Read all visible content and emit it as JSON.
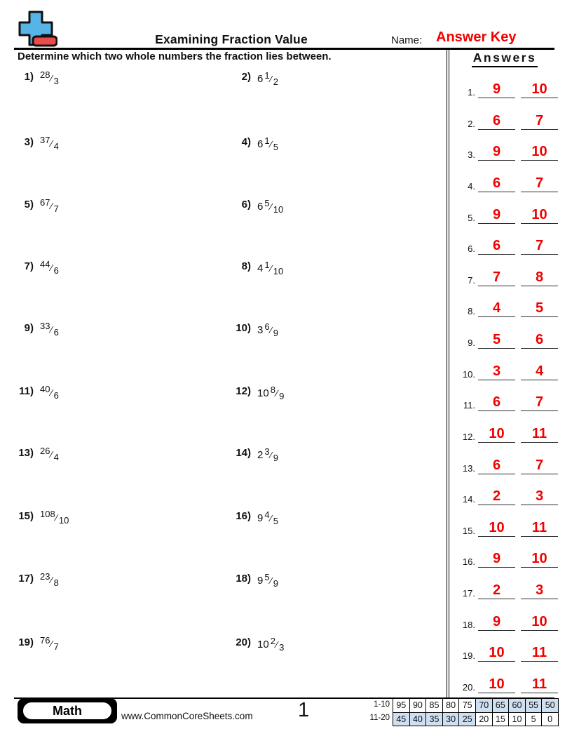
{
  "header": {
    "title": "Examining Fraction Value",
    "name_label": "Name:",
    "name_value": "Answer Key"
  },
  "instruction": "Determine which two whole numbers the fraction lies between.",
  "answers_panel": {
    "title": "Answers",
    "rows": [
      {
        "n": "1.",
        "low": "9",
        "high": "10"
      },
      {
        "n": "2.",
        "low": "6",
        "high": "7"
      },
      {
        "n": "3.",
        "low": "9",
        "high": "10"
      },
      {
        "n": "4.",
        "low": "6",
        "high": "7"
      },
      {
        "n": "5.",
        "low": "9",
        "high": "10"
      },
      {
        "n": "6.",
        "low": "6",
        "high": "7"
      },
      {
        "n": "7.",
        "low": "7",
        "high": "8"
      },
      {
        "n": "8.",
        "low": "4",
        "high": "5"
      },
      {
        "n": "9.",
        "low": "5",
        "high": "6"
      },
      {
        "n": "10.",
        "low": "3",
        "high": "4"
      },
      {
        "n": "11.",
        "low": "6",
        "high": "7"
      },
      {
        "n": "12.",
        "low": "10",
        "high": "11"
      },
      {
        "n": "13.",
        "low": "6",
        "high": "7"
      },
      {
        "n": "14.",
        "low": "2",
        "high": "3"
      },
      {
        "n": "15.",
        "low": "10",
        "high": "11"
      },
      {
        "n": "16.",
        "low": "9",
        "high": "10"
      },
      {
        "n": "17.",
        "low": "2",
        "high": "3"
      },
      {
        "n": "18.",
        "low": "9",
        "high": "10"
      },
      {
        "n": "19.",
        "low": "10",
        "high": "11"
      },
      {
        "n": "20.",
        "low": "10",
        "high": "11"
      }
    ]
  },
  "problems": [
    {
      "label": "1)",
      "whole": "",
      "num": "28",
      "den": "3"
    },
    {
      "label": "2)",
      "whole": "6",
      "num": "1",
      "den": "2"
    },
    {
      "label": "3)",
      "whole": "",
      "num": "37",
      "den": "4"
    },
    {
      "label": "4)",
      "whole": "6",
      "num": "1",
      "den": "5"
    },
    {
      "label": "5)",
      "whole": "",
      "num": "67",
      "den": "7"
    },
    {
      "label": "6)",
      "whole": "6",
      "num": "5",
      "den": "10"
    },
    {
      "label": "7)",
      "whole": "",
      "num": "44",
      "den": "6"
    },
    {
      "label": "8)",
      "whole": "4",
      "num": "1",
      "den": "10"
    },
    {
      "label": "9)",
      "whole": "",
      "num": "33",
      "den": "6"
    },
    {
      "label": "10)",
      "whole": "3",
      "num": "6",
      "den": "9"
    },
    {
      "label": "11)",
      "whole": "",
      "num": "40",
      "den": "6"
    },
    {
      "label": "12)",
      "whole": "10",
      "num": "8",
      "den": "9"
    },
    {
      "label": "13)",
      "whole": "",
      "num": "26",
      "den": "4"
    },
    {
      "label": "14)",
      "whole": "2",
      "num": "3",
      "den": "9"
    },
    {
      "label": "15)",
      "whole": "",
      "num": "108",
      "den": "10"
    },
    {
      "label": "16)",
      "whole": "9",
      "num": "4",
      "den": "5"
    },
    {
      "label": "17)",
      "whole": "",
      "num": "23",
      "den": "8"
    },
    {
      "label": "18)",
      "whole": "9",
      "num": "5",
      "den": "9"
    },
    {
      "label": "19)",
      "whole": "",
      "num": "76",
      "den": "7"
    },
    {
      "label": "20)",
      "whole": "10",
      "num": "2",
      "den": "3"
    }
  ],
  "footer": {
    "subject": "Math",
    "url": "www.CommonCoreSheets.com",
    "page": "1",
    "score_table": {
      "row1_label": "1-10",
      "row1": [
        "95",
        "90",
        "85",
        "80",
        "75",
        "70",
        "65",
        "60",
        "55",
        "50"
      ],
      "row1_highlight": [
        5,
        6,
        7,
        8,
        9
      ],
      "row2_label": "11-20",
      "row2": [
        "45",
        "40",
        "35",
        "30",
        "25",
        "20",
        "15",
        "10",
        "5",
        "0"
      ],
      "row2_highlight": [
        0,
        1,
        2,
        3,
        4
      ]
    }
  },
  "colors": {
    "answer_red": "#f20000",
    "cell_blue": "#cfdff2",
    "logo_blue": "#56b5e6",
    "logo_red": "#e84c4c"
  }
}
